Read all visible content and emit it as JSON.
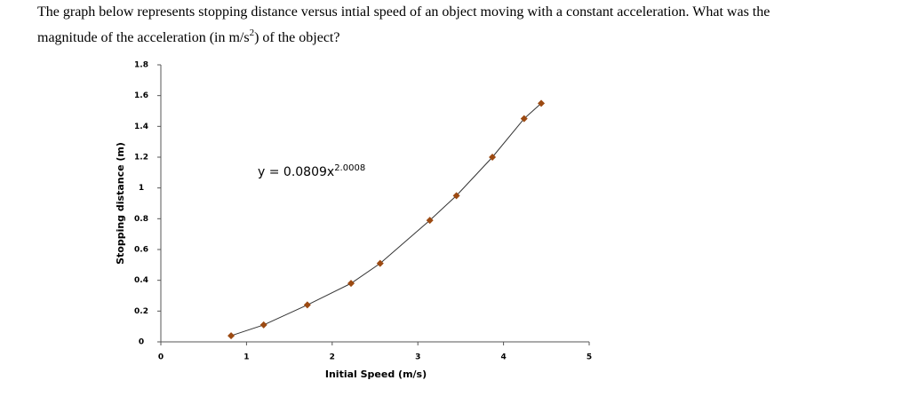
{
  "question": [
    "The graph below represents stopping distance versus intial speed of an object moving with a constant acceleration.  What was the",
    "magnitude of the acceleration (in m/s",
    "2",
    ") of the object?"
  ],
  "chart_data": {
    "type": "scatter",
    "x_label": "Initial Speed (m/s)",
    "y_label": "Stopping distance (m)",
    "equation": [
      "y = 0.0809x",
      "2.0008"
    ],
    "series": [
      {
        "color": "#9c4a12",
        "line_color": "#333333",
        "x": [
          0.82,
          1.2,
          1.71,
          2.22,
          2.56,
          3.14,
          3.45,
          3.87,
          4.24,
          4.44
        ],
        "values": [
          0.04,
          0.11,
          0.24,
          0.38,
          0.51,
          0.79,
          0.95,
          1.2,
          1.45,
          1.55
        ]
      }
    ],
    "xlim": [
      0,
      5
    ],
    "xticks": [
      0,
      1,
      2,
      3,
      4,
      5
    ],
    "ylim": [
      0,
      1.8
    ],
    "yticks": [
      0,
      0.2,
      0.4,
      0.6,
      0.8,
      1,
      1.2,
      1.4,
      1.6,
      1.8
    ]
  }
}
